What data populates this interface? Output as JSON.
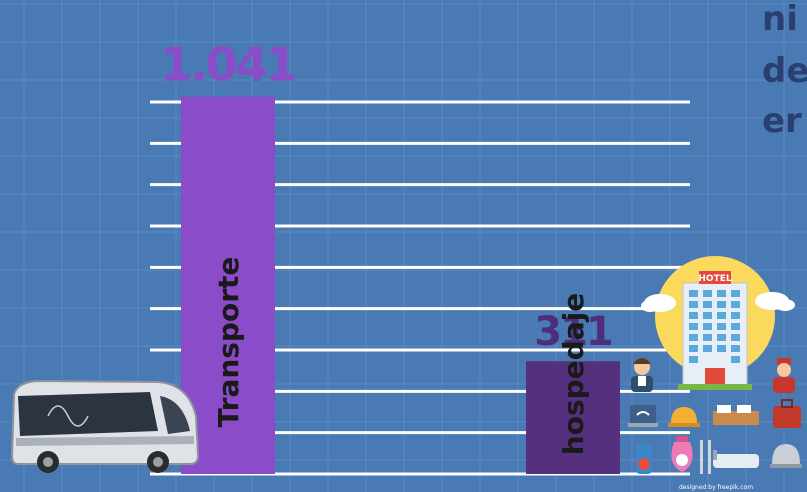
{
  "chart_data": {
    "type": "bar",
    "categories": [
      "Transporte",
      "hospedaje"
    ],
    "values": [
      1041,
      311
    ],
    "value_labels": [
      "1.041",
      "311"
    ],
    "bar_colors": [
      "#8a4cc8",
      "#55307e"
    ],
    "value_label_colors": [
      "#8a4cc8",
      "#4e2d7a"
    ],
    "ylim": [
      0,
      1150
    ],
    "grid": true,
    "title_lines": [
      "ni",
      "de",
      "er"
    ]
  },
  "colors": {
    "background": "#4a7ab4",
    "gridline_minor": "#5b89c0",
    "gridline_major": "#ffffff",
    "side_text": "#2a3e70"
  },
  "icons": {
    "left": [
      "bus-icon"
    ],
    "right": [
      "hotel-icon",
      "receptionist-icon",
      "bellboy-icon",
      "wifi-laptop-icon",
      "service-bell-icon",
      "bed-icon",
      "luggage-icon",
      "door-sign-icon",
      "money-bag-icon",
      "cutlery-icon",
      "bathtub-icon",
      "food-cloche-icon",
      "cloud-icon"
    ]
  },
  "credit": "designed by freepik.com",
  "hotel_sign": "HOTEL"
}
